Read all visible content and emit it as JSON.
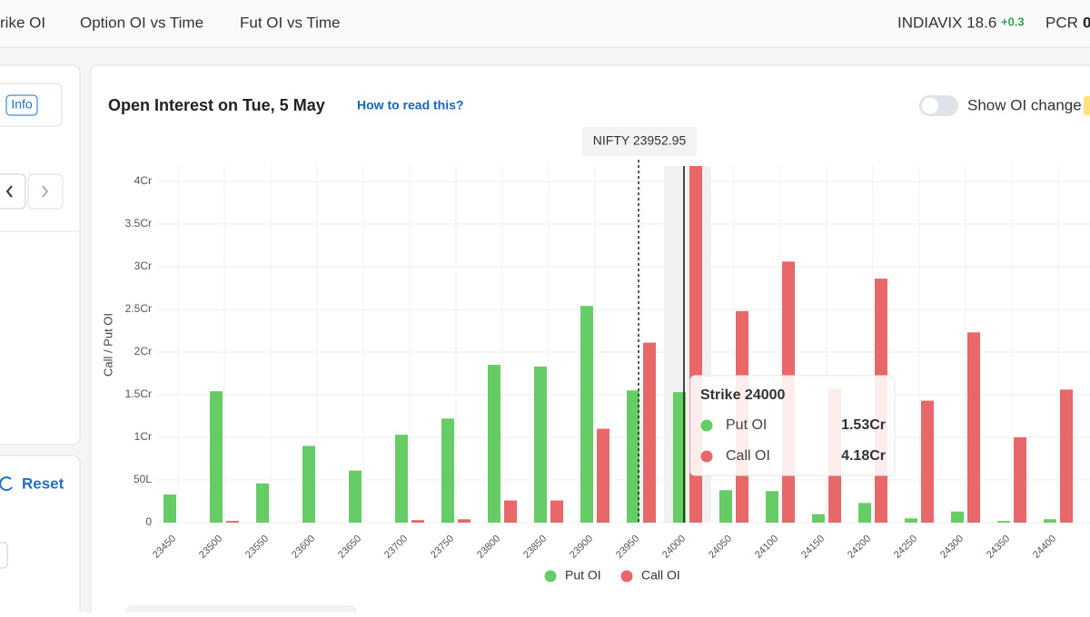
{
  "nav": {
    "tabs": [
      "rike OI",
      "Option OI vs Time",
      "Fut OI vs Time"
    ],
    "vix_label": "INDIAVIX 18.6",
    "vix_change": "+0.3",
    "pcr_label": "PCR",
    "pcr_value": "0"
  },
  "sidebar": {
    "info": "Info",
    "reset": "Reset"
  },
  "panel": {
    "title": "Open Interest on Tue, 5 May",
    "help_link": "How to read this?",
    "toggle_label": "Show OI change"
  },
  "chart_data": {
    "type": "bar",
    "y_label": "Call / Put OI",
    "categories": [
      "23450",
      "23500",
      "23550",
      "23600",
      "23650",
      "23700",
      "23750",
      "23800",
      "23850",
      "23900",
      "23950",
      "24000",
      "24050",
      "24100",
      "24150",
      "24200",
      "24250",
      "24300",
      "24350",
      "24400"
    ],
    "series": [
      {
        "name": "Put OI",
        "color": "#66cc66",
        "values": [
          0.33,
          1.54,
          0.46,
          0.9,
          0.61,
          1.03,
          1.22,
          1.85,
          1.83,
          2.54,
          1.55,
          1.53,
          0.38,
          0.37,
          0.1,
          0.23,
          0.05,
          0.13,
          0.02,
          0.04
        ]
      },
      {
        "name": "Call OI",
        "color": "#e8686a",
        "values": [
          0,
          0.02,
          0,
          0,
          0,
          0.03,
          0.04,
          0.26,
          0.26,
          1.1,
          2.11,
          4.18,
          2.48,
          3.06,
          1.57,
          2.86,
          1.43,
          2.23,
          1.0,
          1.56
        ]
      }
    ],
    "ylim": [
      0,
      4.18
    ],
    "yticks": [
      0,
      {
        "value": 0.5,
        "label": "50L"
      },
      {
        "value": 1,
        "label": "1Cr"
      },
      {
        "value": 1.5,
        "label": "1.5Cr"
      },
      {
        "value": 2,
        "label": "2Cr"
      },
      {
        "value": 2.5,
        "label": "2.5Cr"
      },
      {
        "value": 3,
        "label": "3Cr"
      },
      {
        "value": 3.5,
        "label": "3.5Cr"
      },
      {
        "value": 4,
        "label": "4Cr"
      }
    ],
    "grid": true,
    "spot": {
      "label": "NIFTY 23952.95",
      "value": 23952.95
    },
    "tooltip": {
      "title": "Strike 24000",
      "rows": [
        {
          "name": "Put OI",
          "value": "1.53Cr"
        },
        {
          "name": "Call OI",
          "value": "4.18Cr"
        }
      ]
    }
  }
}
